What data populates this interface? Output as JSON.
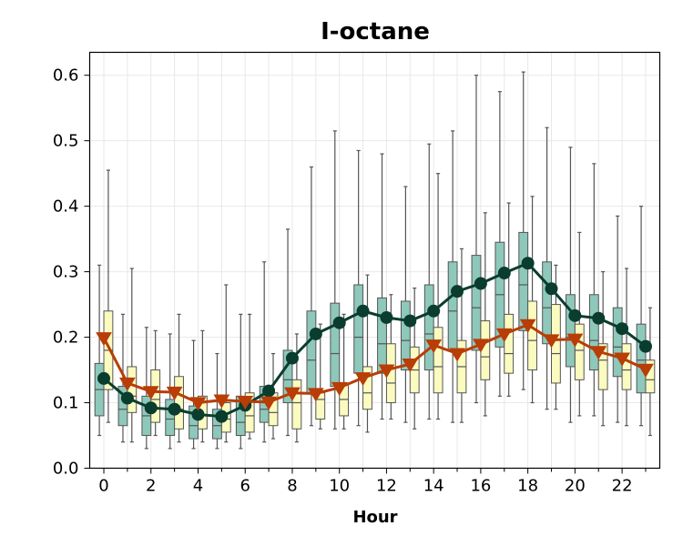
{
  "chart_data": {
    "type": "box",
    "title": "I-octane",
    "xlabel": "Hour",
    "ylabel": "",
    "xlim": [
      -0.6,
      23.6
    ],
    "ylim": [
      0,
      0.635
    ],
    "xticks": [
      0,
      2,
      4,
      6,
      8,
      10,
      12,
      14,
      16,
      18,
      20,
      22
    ],
    "yticks": [
      0.0,
      0.1,
      0.2,
      0.3,
      0.4,
      0.5,
      0.6
    ],
    "grid": true,
    "colors": {
      "box_a": "#8ec8bb",
      "box_b": "#fbfbc0",
      "box_edge": "#555555",
      "line_a": "#0a3d2e",
      "line_b": "#b83d06"
    },
    "series": [
      {
        "color": "#0a3d2e",
        "marker": "circle",
        "boxes": [
          {
            "x": 0,
            "whislo": 0.05,
            "q1": 0.08,
            "med": 0.12,
            "q3": 0.16,
            "whishi": 0.31,
            "mean": 0.137
          },
          {
            "x": 1,
            "whislo": 0.04,
            "q1": 0.065,
            "med": 0.09,
            "q3": 0.125,
            "whishi": 0.235,
            "mean": 0.107
          },
          {
            "x": 2,
            "whislo": 0.03,
            "q1": 0.05,
            "med": 0.08,
            "q3": 0.11,
            "whishi": 0.215,
            "mean": 0.092
          },
          {
            "x": 3,
            "whislo": 0.03,
            "q1": 0.05,
            "med": 0.075,
            "q3": 0.105,
            "whishi": 0.205,
            "mean": 0.09
          },
          {
            "x": 4,
            "whislo": 0.03,
            "q1": 0.045,
            "med": 0.065,
            "q3": 0.095,
            "whishi": 0.195,
            "mean": 0.082
          },
          {
            "x": 5,
            "whislo": 0.03,
            "q1": 0.045,
            "med": 0.065,
            "q3": 0.09,
            "whishi": 0.175,
            "mean": 0.079
          },
          {
            "x": 6,
            "whislo": 0.03,
            "q1": 0.05,
            "med": 0.07,
            "q3": 0.11,
            "whishi": 0.235,
            "mean": 0.096
          },
          {
            "x": 7,
            "whislo": 0.04,
            "q1": 0.07,
            "med": 0.09,
            "q3": 0.125,
            "whishi": 0.315,
            "mean": 0.118
          },
          {
            "x": 8,
            "whislo": 0.05,
            "q1": 0.1,
            "med": 0.135,
            "q3": 0.18,
            "whishi": 0.365,
            "mean": 0.168
          },
          {
            "x": 9,
            "whislo": 0.065,
            "q1": 0.115,
            "med": 0.165,
            "q3": 0.24,
            "whishi": 0.46,
            "mean": 0.205
          },
          {
            "x": 10,
            "whislo": 0.06,
            "q1": 0.125,
            "med": 0.175,
            "q3": 0.252,
            "whishi": 0.515,
            "mean": 0.222
          },
          {
            "x": 11,
            "whislo": 0.065,
            "q1": 0.145,
            "med": 0.2,
            "q3": 0.28,
            "whishi": 0.485,
            "mean": 0.24
          },
          {
            "x": 12,
            "whislo": 0.075,
            "q1": 0.145,
            "med": 0.19,
            "q3": 0.26,
            "whishi": 0.48,
            "mean": 0.23
          },
          {
            "x": 13,
            "whislo": 0.07,
            "q1": 0.15,
            "med": 0.195,
            "q3": 0.255,
            "whishi": 0.43,
            "mean": 0.225
          },
          {
            "x": 14,
            "whislo": 0.075,
            "q1": 0.15,
            "med": 0.205,
            "q3": 0.28,
            "whishi": 0.495,
            "mean": 0.24
          },
          {
            "x": 15,
            "whislo": 0.07,
            "q1": 0.18,
            "med": 0.24,
            "q3": 0.315,
            "whishi": 0.515,
            "mean": 0.27
          },
          {
            "x": 16,
            "whislo": 0.1,
            "q1": 0.18,
            "med": 0.245,
            "q3": 0.325,
            "whishi": 0.6,
            "mean": 0.282
          },
          {
            "x": 17,
            "whislo": 0.11,
            "q1": 0.185,
            "med": 0.265,
            "q3": 0.345,
            "whishi": 0.575,
            "mean": 0.298
          },
          {
            "x": 18,
            "whislo": 0.12,
            "q1": 0.21,
            "med": 0.28,
            "q3": 0.36,
            "whishi": 0.605,
            "mean": 0.313
          },
          {
            "x": 19,
            "whislo": 0.09,
            "q1": 0.19,
            "med": 0.245,
            "q3": 0.315,
            "whishi": 0.52,
            "mean": 0.274
          },
          {
            "x": 20,
            "whislo": 0.07,
            "q1": 0.155,
            "med": 0.2,
            "q3": 0.265,
            "whishi": 0.49,
            "mean": 0.233
          },
          {
            "x": 21,
            "whislo": 0.08,
            "q1": 0.15,
            "med": 0.195,
            "q3": 0.265,
            "whishi": 0.465,
            "mean": 0.229
          },
          {
            "x": 22,
            "whislo": 0.07,
            "q1": 0.14,
            "med": 0.185,
            "q3": 0.245,
            "whishi": 0.385,
            "mean": 0.213
          },
          {
            "x": 23,
            "whislo": 0.065,
            "q1": 0.115,
            "med": 0.165,
            "q3": 0.22,
            "whishi": 0.4,
            "mean": 0.186
          }
        ]
      },
      {
        "color": "#b83d06",
        "marker": "triangle-down",
        "boxes": [
          {
            "x": 0,
            "whislo": 0.07,
            "q1": 0.12,
            "med": 0.18,
            "q3": 0.24,
            "whishi": 0.455,
            "mean": 0.199
          },
          {
            "x": 1,
            "whislo": 0.04,
            "q1": 0.085,
            "med": 0.11,
            "q3": 0.155,
            "whishi": 0.305,
            "mean": 0.13
          },
          {
            "x": 2,
            "whislo": 0.05,
            "q1": 0.07,
            "med": 0.105,
            "q3": 0.15,
            "whishi": 0.21,
            "mean": 0.117
          },
          {
            "x": 3,
            "whislo": 0.04,
            "q1": 0.06,
            "med": 0.09,
            "q3": 0.14,
            "whishi": 0.235,
            "mean": 0.116
          },
          {
            "x": 4,
            "whislo": 0.04,
            "q1": 0.06,
            "med": 0.08,
            "q3": 0.11,
            "whishi": 0.21,
            "mean": 0.1
          },
          {
            "x": 5,
            "whislo": 0.04,
            "q1": 0.055,
            "med": 0.075,
            "q3": 0.1,
            "whishi": 0.28,
            "mean": 0.104
          },
          {
            "x": 6,
            "whislo": 0.045,
            "q1": 0.055,
            "med": 0.08,
            "q3": 0.115,
            "whishi": 0.235,
            "mean": 0.102
          },
          {
            "x": 7,
            "whislo": 0.045,
            "q1": 0.065,
            "med": 0.085,
            "q3": 0.115,
            "whishi": 0.175,
            "mean": 0.101
          },
          {
            "x": 8,
            "whislo": 0.04,
            "q1": 0.06,
            "med": 0.1,
            "q3": 0.135,
            "whishi": 0.205,
            "mean": 0.115
          },
          {
            "x": 9,
            "whislo": 0.06,
            "q1": 0.075,
            "med": 0.105,
            "q3": 0.115,
            "whishi": 0.22,
            "mean": 0.114
          },
          {
            "x": 10,
            "whislo": 0.06,
            "q1": 0.08,
            "med": 0.105,
            "q3": 0.13,
            "whishi": 0.235,
            "mean": 0.123
          },
          {
            "x": 11,
            "whislo": 0.055,
            "q1": 0.09,
            "med": 0.115,
            "q3": 0.155,
            "whishi": 0.295,
            "mean": 0.138
          },
          {
            "x": 12,
            "whislo": 0.075,
            "q1": 0.1,
            "med": 0.13,
            "q3": 0.19,
            "whishi": 0.265,
            "mean": 0.15
          },
          {
            "x": 13,
            "whislo": 0.06,
            "q1": 0.115,
            "med": 0.15,
            "q3": 0.185,
            "whishi": 0.275,
            "mean": 0.159
          },
          {
            "x": 14,
            "whislo": 0.075,
            "q1": 0.115,
            "med": 0.155,
            "q3": 0.215,
            "whishi": 0.45,
            "mean": 0.188
          },
          {
            "x": 15,
            "whislo": 0.07,
            "q1": 0.115,
            "med": 0.155,
            "q3": 0.195,
            "whishi": 0.335,
            "mean": 0.175
          },
          {
            "x": 16,
            "whislo": 0.08,
            "q1": 0.135,
            "med": 0.17,
            "q3": 0.225,
            "whishi": 0.39,
            "mean": 0.189
          },
          {
            "x": 17,
            "whislo": 0.11,
            "q1": 0.145,
            "med": 0.175,
            "q3": 0.235,
            "whishi": 0.405,
            "mean": 0.205
          },
          {
            "x": 18,
            "whislo": 0.1,
            "q1": 0.15,
            "med": 0.195,
            "q3": 0.255,
            "whishi": 0.415,
            "mean": 0.219
          },
          {
            "x": 19,
            "whislo": 0.09,
            "q1": 0.13,
            "med": 0.175,
            "q3": 0.25,
            "whishi": 0.31,
            "mean": 0.196
          },
          {
            "x": 20,
            "whislo": 0.08,
            "q1": 0.135,
            "med": 0.18,
            "q3": 0.22,
            "whishi": 0.36,
            "mean": 0.197
          },
          {
            "x": 21,
            "whislo": 0.065,
            "q1": 0.12,
            "med": 0.165,
            "q3": 0.19,
            "whishi": 0.3,
            "mean": 0.178
          },
          {
            "x": 22,
            "whislo": 0.065,
            "q1": 0.12,
            "med": 0.15,
            "q3": 0.19,
            "whishi": 0.305,
            "mean": 0.168
          },
          {
            "x": 23,
            "whislo": 0.05,
            "q1": 0.115,
            "med": 0.135,
            "q3": 0.165,
            "whishi": 0.245,
            "mean": 0.151
          }
        ]
      }
    ]
  }
}
